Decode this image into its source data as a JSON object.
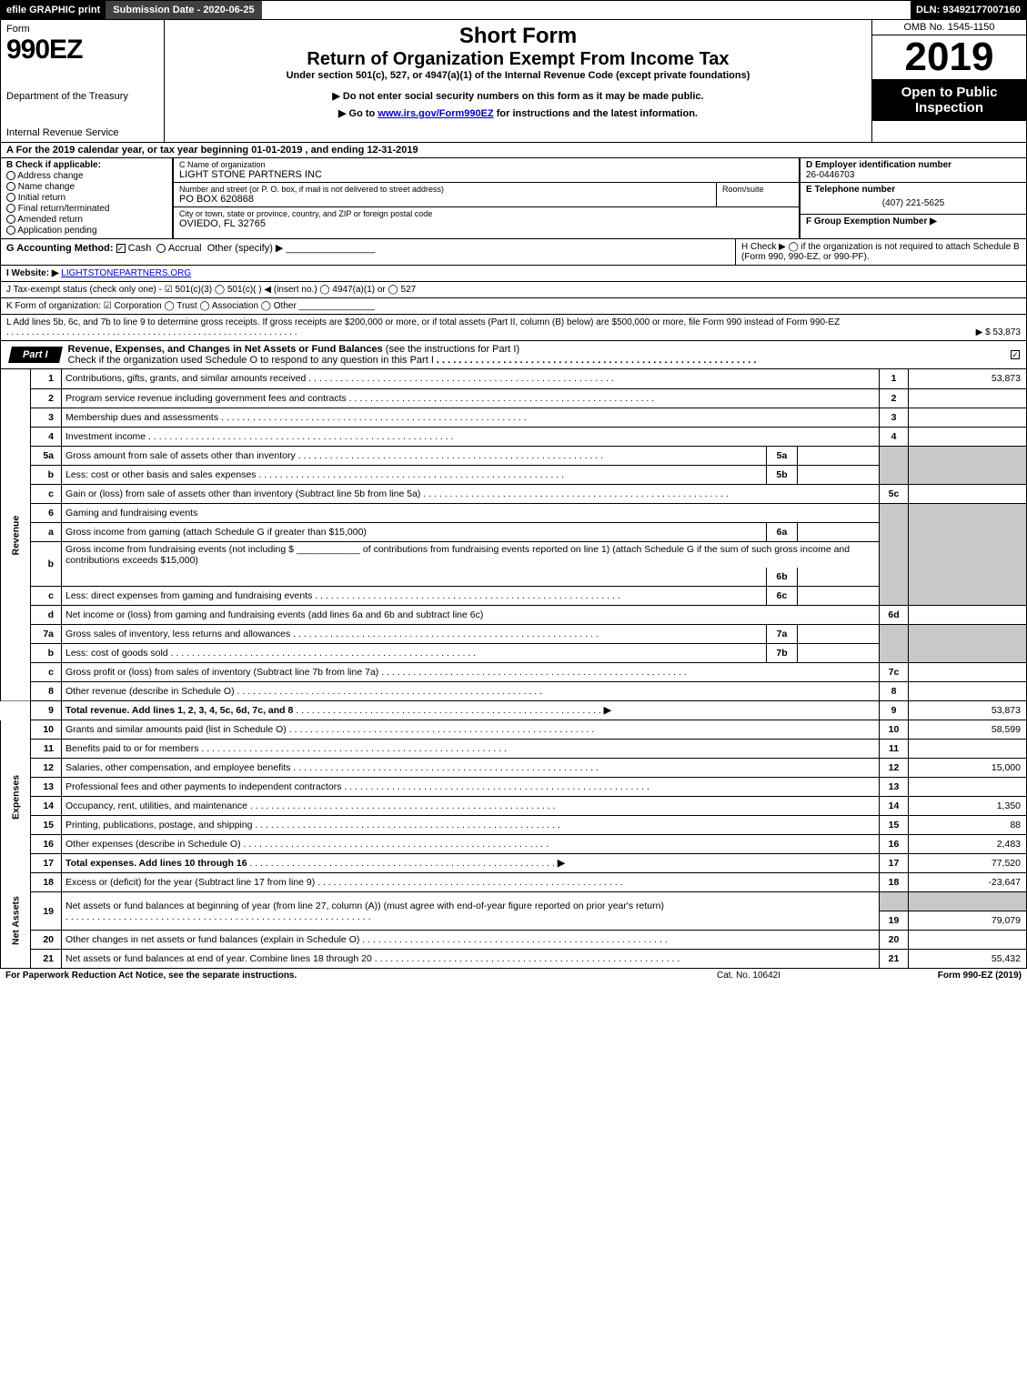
{
  "topbar": {
    "efile": "efile GRAPHIC print",
    "submission_label": "Submission Date - 2020-06-25",
    "dln": "DLN: 93492177007160"
  },
  "header": {
    "form_word": "Form",
    "form_number": "990EZ",
    "dept": "Department of the Treasury",
    "irs": "Internal Revenue Service",
    "short_form": "Short Form",
    "return_title": "Return of Organization Exempt From Income Tax",
    "under": "Under section 501(c), 527, or 4947(a)(1) of the Internal Revenue Code (except private foundations)",
    "noenter": "▶ Do not enter social security numbers on this form as it may be made public.",
    "goto_pre": "▶ Go to ",
    "goto_link": "www.irs.gov/Form990EZ",
    "goto_post": " for instructions and the latest information.",
    "omb": "OMB No. 1545-1150",
    "year": "2019",
    "open": "Open to Public Inspection"
  },
  "line_a": "A  For the 2019 calendar year, or tax year beginning 01-01-2019 , and ending 12-31-2019",
  "box_b": {
    "label": "B  Check if applicable:",
    "opts": [
      "Address change",
      "Name change",
      "Initial return",
      "Final return/terminated",
      "Amended return",
      "Application pending"
    ]
  },
  "box_c": {
    "label": "C Name of organization",
    "value": "LIGHT STONE PARTNERS INC",
    "street_label": "Number and street (or P. O. box, if mail is not delivered to street address)",
    "street": "PO BOX 620868",
    "room_label": "Room/suite",
    "city_label": "City or town, state or province, country, and ZIP or foreign postal code",
    "city": "OVIEDO, FL  32765"
  },
  "box_d": {
    "label": "D Employer identification number",
    "value": "26-0446703"
  },
  "box_e": {
    "label": "E Telephone number",
    "value": "(407) 221-5625"
  },
  "box_f": {
    "label": "F Group Exemption Number   ▶"
  },
  "line_g": {
    "label": "G Accounting Method:",
    "cash": "Cash",
    "accrual": "Accrual",
    "other": "Other (specify) ▶",
    "blank": "________________"
  },
  "line_h": "H   Check ▶   ◯  if the organization is not required to attach Schedule B (Form 990, 990-EZ, or 990-PF).",
  "line_i": {
    "label": "I Website: ▶",
    "value": "LIGHTSTONEPARTNERS.ORG"
  },
  "line_j": "J Tax-exempt status (check only one) -  ☑ 501(c)(3)  ◯ 501(c)(   ) ◀ (insert no.)  ◯ 4947(a)(1) or  ◯ 527",
  "line_k": "K Form of organization:   ☑ Corporation   ◯ Trust   ◯ Association   ◯ Other  _______________",
  "line_l": {
    "text": "L Add lines 5b, 6c, and 7b to line 9 to determine gross receipts. If gross receipts are $200,000 or more, or if total assets (Part II, column (B) below) are $500,000 or more, file Form 990 instead of Form 990-EZ",
    "amount": "▶ $ 53,873"
  },
  "part1": {
    "label": "Part I",
    "title": "Revenue, Expenses, and Changes in Net Assets or Fund Balances",
    "sub": " (see the instructions for Part I)",
    "check": "Check if the organization used Schedule O to respond to any question in this Part I"
  },
  "side": {
    "rev": "Revenue",
    "exp": "Expenses",
    "net": "Net Assets"
  },
  "rows": {
    "r1": {
      "ln": "1",
      "desc": "Contributions, gifts, grants, and similar amounts received",
      "num": "1",
      "val": "53,873"
    },
    "r2": {
      "ln": "2",
      "desc": "Program service revenue including government fees and contracts",
      "num": "2",
      "val": ""
    },
    "r3": {
      "ln": "3",
      "desc": "Membership dues and assessments",
      "num": "3",
      "val": ""
    },
    "r4": {
      "ln": "4",
      "desc": "Investment income",
      "num": "4",
      "val": ""
    },
    "r5a": {
      "ln": "5a",
      "desc": "Gross amount from sale of assets other than inventory",
      "mln": "5a"
    },
    "r5b": {
      "ln": "b",
      "desc": "Less: cost or other basis and sales expenses",
      "mln": "5b"
    },
    "r5c": {
      "ln": "c",
      "desc": "Gain or (loss) from sale of assets other than inventory (Subtract line 5b from line 5a)",
      "num": "5c",
      "val": ""
    },
    "r6": {
      "ln": "6",
      "desc": "Gaming and fundraising events"
    },
    "r6a": {
      "ln": "a",
      "desc": "Gross income from gaming (attach Schedule G if greater than $15,000)",
      "mln": "6a"
    },
    "r6b": {
      "ln": "b",
      "desc1": "Gross income from fundraising events (not including $",
      "desc2": "of contributions from fundraising events reported on line 1) (attach Schedule G if the sum of such gross income and contributions exceeds $15,000)",
      "mln": "6b"
    },
    "r6c": {
      "ln": "c",
      "desc": "Less: direct expenses from gaming and fundraising events",
      "mln": "6c"
    },
    "r6d": {
      "ln": "d",
      "desc": "Net income or (loss) from gaming and fundraising events (add lines 6a and 6b and subtract line 6c)",
      "num": "6d",
      "val": ""
    },
    "r7a": {
      "ln": "7a",
      "desc": "Gross sales of inventory, less returns and allowances",
      "mln": "7a"
    },
    "r7b": {
      "ln": "b",
      "desc": "Less: cost of goods sold",
      "mln": "7b"
    },
    "r7c": {
      "ln": "c",
      "desc": "Gross profit or (loss) from sales of inventory (Subtract line 7b from line 7a)",
      "num": "7c",
      "val": ""
    },
    "r8": {
      "ln": "8",
      "desc": "Other revenue (describe in Schedule O)",
      "num": "8",
      "val": ""
    },
    "r9": {
      "ln": "9",
      "desc": "Total revenue. Add lines 1, 2, 3, 4, 5c, 6d, 7c, and 8",
      "arrow": "▶",
      "num": "9",
      "val": "53,873"
    },
    "r10": {
      "ln": "10",
      "desc": "Grants and similar amounts paid (list in Schedule O)",
      "num": "10",
      "val": "58,599"
    },
    "r11": {
      "ln": "11",
      "desc": "Benefits paid to or for members",
      "num": "11",
      "val": ""
    },
    "r12": {
      "ln": "12",
      "desc": "Salaries, other compensation, and employee benefits",
      "num": "12",
      "val": "15,000"
    },
    "r13": {
      "ln": "13",
      "desc": "Professional fees and other payments to independent contractors",
      "num": "13",
      "val": ""
    },
    "r14": {
      "ln": "14",
      "desc": "Occupancy, rent, utilities, and maintenance",
      "num": "14",
      "val": "1,350"
    },
    "r15": {
      "ln": "15",
      "desc": "Printing, publications, postage, and shipping",
      "num": "15",
      "val": "88"
    },
    "r16": {
      "ln": "16",
      "desc": "Other expenses (describe in Schedule O)",
      "num": "16",
      "val": "2,483"
    },
    "r17": {
      "ln": "17",
      "desc": "Total expenses. Add lines 10 through 16",
      "arrow": "▶",
      "num": "17",
      "val": "77,520"
    },
    "r18": {
      "ln": "18",
      "desc": "Excess or (deficit) for the year (Subtract line 17 from line 9)",
      "num": "18",
      "val": "-23,647"
    },
    "r19": {
      "ln": "19",
      "desc": "Net assets or fund balances at beginning of year (from line 27, column (A)) (must agree with end-of-year figure reported on prior year's return)",
      "num": "19",
      "val": "79,079"
    },
    "r20": {
      "ln": "20",
      "desc": "Other changes in net assets or fund balances (explain in Schedule O)",
      "num": "20",
      "val": ""
    },
    "r21": {
      "ln": "21",
      "desc": "Net assets or fund balances at end of year. Combine lines 18 through 20",
      "num": "21",
      "val": "55,432"
    }
  },
  "footer": {
    "left": "For Paperwork Reduction Act Notice, see the separate instructions.",
    "mid": "Cat. No. 10642I",
    "right": "Form 990-EZ (2019)"
  },
  "colors": {
    "black": "#000000",
    "white": "#ffffff",
    "darkgray": "#404040",
    "shade": "#c8c8c8",
    "link": "#0000cc"
  }
}
